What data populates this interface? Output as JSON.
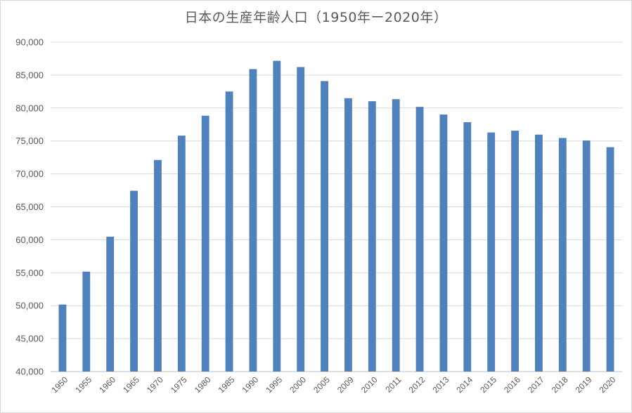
{
  "chart_data": {
    "type": "bar",
    "title": "日本の生産年齢人口（1950年ー2020年）",
    "xlabel": "",
    "ylabel": "",
    "categories": [
      "1950",
      "1955",
      "1960",
      "1965",
      "1970",
      "1975",
      "1980",
      "1985",
      "1990",
      "1995",
      "2000",
      "2005",
      "2009",
      "2010",
      "2011",
      "2012",
      "2013",
      "2014",
      "2015",
      "2016",
      "2017",
      "2018",
      "2019",
      "2020"
    ],
    "values": [
      50168,
      55167,
      60469,
      67444,
      72119,
      75807,
      78835,
      82506,
      85904,
      87165,
      86220,
      84092,
      81493,
      81032,
      81342,
      80175,
      79010,
      77850,
      76289,
      76562,
      75962,
      75451,
      75072,
      74058
    ],
    "ylim": [
      40000,
      90000
    ],
    "yticks": [
      "40,000",
      "45,000",
      "50,000",
      "55,000",
      "60,000",
      "65,000",
      "70,000",
      "75,000",
      "80,000",
      "85,000",
      "90,000"
    ],
    "ytick_values": [
      40000,
      45000,
      50000,
      55000,
      60000,
      65000,
      70000,
      75000,
      80000,
      85000,
      90000
    ],
    "grid": true,
    "legend": "none",
    "bar_color": "#4f81bd",
    "grid_color": "#d9d9d9",
    "axis_color": "#bfbfbf"
  }
}
